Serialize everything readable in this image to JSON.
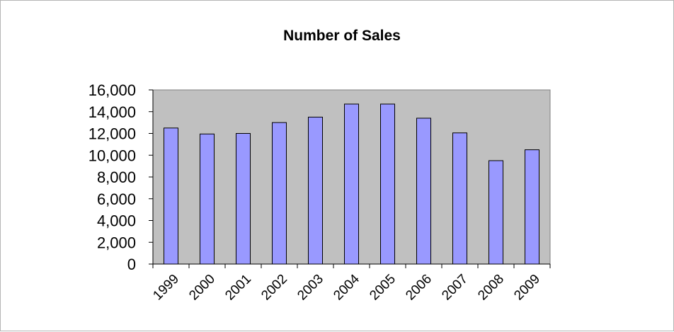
{
  "chart_data": {
    "type": "bar",
    "title": "Number of Sales",
    "xlabel": "",
    "ylabel": "",
    "categories": [
      "1999",
      "2000",
      "2001",
      "2002",
      "2003",
      "2004",
      "2005",
      "2006",
      "2007",
      "2008",
      "2009"
    ],
    "values": [
      12500,
      11950,
      12000,
      13000,
      13500,
      14700,
      14700,
      13400,
      12050,
      9500,
      10500
    ],
    "ylim": [
      0,
      16000
    ],
    "yticks": [
      0,
      2000,
      4000,
      6000,
      8000,
      10000,
      12000,
      14000,
      16000
    ],
    "ytick_labels": [
      "0",
      "2,000",
      "4,000",
      "6,000",
      "8,000",
      "10,000",
      "12,000",
      "14,000",
      "16,000"
    ],
    "grid": false,
    "legend": false,
    "colors": {
      "bar_fill": "#9999ff",
      "bar_stroke": "#000000",
      "plot_background": "#c0c0c0",
      "plot_border": "#808080",
      "axis": "#000000"
    }
  }
}
